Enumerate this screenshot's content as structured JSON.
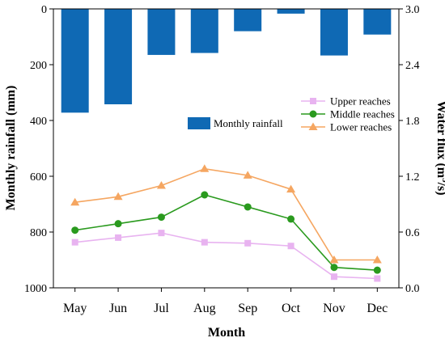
{
  "chart_data": {
    "type": "bar+line",
    "xlabel": "Month",
    "categories": [
      "May",
      "Jun",
      "Jul",
      "Aug",
      "Sep",
      "Oct",
      "Nov",
      "Dec"
    ],
    "left_axis": {
      "label": "Monthly rainfall (mm)",
      "range": [
        0,
        1000
      ],
      "inverted": true,
      "ticks": [
        "0",
        "200",
        "400",
        "600",
        "800",
        "1000"
      ]
    },
    "right_axis": {
      "label_prefix": "Water flux (m",
      "label_sup": "3",
      "label_suffix": "/s)",
      "range": [
        0.0,
        3.0
      ],
      "ticks": [
        "0.0",
        "0.6",
        "1.2",
        "1.8",
        "2.4",
        "3.0"
      ]
    },
    "bar_series": {
      "name": "Monthly rainfall",
      "color": "#0f69b4",
      "values": [
        372,
        342,
        165,
        158,
        80,
        17,
        167,
        92
      ]
    },
    "line_series": [
      {
        "name": "Upper reaches",
        "color": "#e8b3f0",
        "marker": "square",
        "values": [
          0.49,
          0.54,
          0.59,
          0.49,
          0.48,
          0.45,
          0.12,
          0.1
        ]
      },
      {
        "name": "Middle reaches",
        "color": "#2a9a1e",
        "marker": "circle",
        "values": [
          0.62,
          0.69,
          0.76,
          1.0,
          0.87,
          0.74,
          0.22,
          0.19
        ]
      },
      {
        "name": "Lower reaches",
        "color": "#f5a661",
        "marker": "triangle",
        "values": [
          0.92,
          0.98,
          1.1,
          1.28,
          1.21,
          1.06,
          0.3,
          0.3
        ]
      }
    ],
    "grid": false,
    "legend": [
      "right-middle (bar)",
      "right-upper (lines)"
    ]
  }
}
